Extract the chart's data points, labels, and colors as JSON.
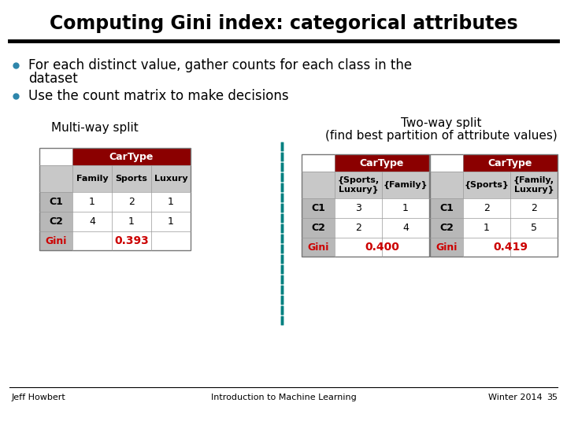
{
  "title": "Computing Gini index: categorical attributes",
  "bullet_color": "#2E86AB",
  "bullet1_line1": "For each distinct value, gather counts for each class in the",
  "bullet1_line2": "dataset",
  "bullet2": "Use the count matrix to make decisions",
  "multiway_label": "Multi-way split",
  "twoway_label": "Two-way split",
  "twoway_label2": "(find best partition of attribute values)",
  "footer_left": "Jeff Howbert",
  "footer_center": "Introduction to Machine Learning",
  "footer_right": "Winter 2014",
  "footer_page": "35",
  "dark_red": "#8B0000",
  "gini_red": "#CC0000",
  "header_text_color": "#FFFFFF",
  "light_gray": "#C8C8C8",
  "row_label_gray": "#B8B8B8",
  "separator_color": "#008080",
  "table1": {
    "header": "CarType",
    "col_headers": [
      "Family",
      "Sports",
      "Luxury"
    ],
    "rows": [
      {
        "label": "C1",
        "values": [
          "1",
          "2",
          "1"
        ]
      },
      {
        "label": "C2",
        "values": [
          "4",
          "1",
          "1"
        ]
      }
    ],
    "gini_label": "Gini",
    "gini_value": "0.393"
  },
  "table2": {
    "header": "CarType",
    "col_headers": [
      "{Sports,\nLuxury}",
      "{Family}"
    ],
    "rows": [
      {
        "label": "C1",
        "values": [
          "3",
          "1"
        ]
      },
      {
        "label": "C2",
        "values": [
          "2",
          "4"
        ]
      }
    ],
    "gini_label": "Gini",
    "gini_value": "0.400"
  },
  "table3": {
    "header": "CarType",
    "col_headers": [
      "{Sports}",
      "{Family,\nLuxury}"
    ],
    "rows": [
      {
        "label": "C1",
        "values": [
          "2",
          "2"
        ]
      },
      {
        "label": "C2",
        "values": [
          "1",
          "5"
        ]
      }
    ],
    "gini_label": "Gini",
    "gini_value": "0.419"
  },
  "bg_color": "#FFFFFF"
}
